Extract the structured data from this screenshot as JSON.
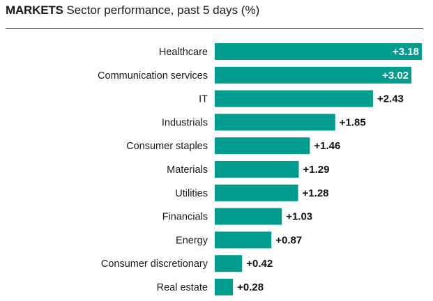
{
  "header": {
    "kicker": "MARKETS",
    "title": "Sector performance, past 5 days (%)"
  },
  "colors": {
    "bar": "#009c8e",
    "inside_label": "#ffffff",
    "outside_label": "#111111"
  },
  "chart_data": {
    "type": "bar",
    "orientation": "horizontal",
    "title": "Sector performance, past 5 days (%)",
    "categories": [
      "Healthcare",
      "Communication services",
      "IT",
      "Industrials",
      "Consumer staples",
      "Materials",
      "Utilities",
      "Financials",
      "Energy",
      "Consumer discretionary",
      "Real estate"
    ],
    "values": [
      3.18,
      3.02,
      2.43,
      1.85,
      1.46,
      1.29,
      1.28,
      1.03,
      0.87,
      0.42,
      0.28
    ],
    "data_labels": [
      "+3.18",
      "+3.02",
      "+2.43",
      "+1.85",
      "+1.46",
      "+1.29",
      "+1.28",
      "+1.03",
      "+0.87",
      "+0.42",
      "+0.28"
    ],
    "xlabel": "",
    "ylabel": "",
    "xlim": [
      0,
      3.18
    ],
    "grid": false,
    "legend": "none"
  }
}
